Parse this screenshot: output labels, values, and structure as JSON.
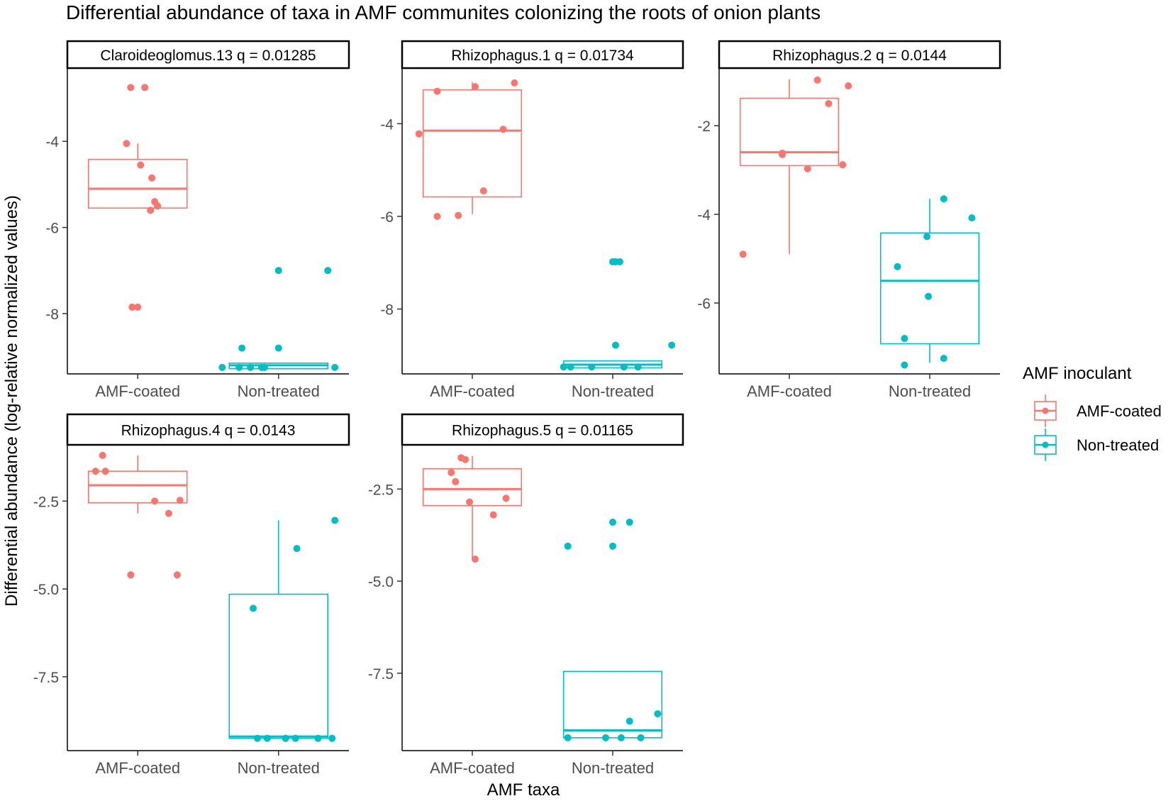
{
  "chart_data": {
    "type": "boxplot",
    "title": "Differential abundance of taxa in AMF communites colonizing the roots of onion plants",
    "xlabel": "AMF taxa",
    "ylabel": "Differential abundance (log-relative normalized values)",
    "categories": [
      "AMF-coated",
      "Non-treated"
    ],
    "legend": {
      "title": "AMF inoculant",
      "position": "right",
      "entries": [
        {
          "label": "AMF-coated",
          "color": "#F8766D"
        },
        {
          "label": "Non-treated",
          "color": "#00BFC4"
        }
      ]
    },
    "panels": [
      {
        "strip": "Claroideoglomus.13 q = 0.01285",
        "ylim": [
          -9.4,
          -2.3
        ],
        "yticks": [
          -4,
          -6,
          -8
        ],
        "ytick_labels": [
          "-4",
          "-6",
          "-8"
        ],
        "series": [
          {
            "name": "AMF-coated",
            "box": {
              "q1": -5.55,
              "median": -5.1,
              "q3": -4.42,
              "lower": -5.55,
              "upper": -4.05
            },
            "points": [
              [
                -0.05,
                -2.75
              ],
              [
                0.05,
                -2.75
              ],
              [
                -0.08,
                -4.05
              ],
              [
                0.02,
                -4.55
              ],
              [
                0.1,
                -4.85
              ],
              [
                0.12,
                -5.4
              ],
              [
                0.09,
                -5.6
              ],
              [
                0.14,
                -5.5
              ],
              [
                -0.04,
                -7.85
              ],
              [
                0.0,
                -7.85
              ]
            ]
          },
          {
            "name": "Non-treated",
            "box": {
              "q1": -9.28,
              "median": -9.2,
              "q3": -9.15,
              "lower": -9.28,
              "upper": -9.15
            },
            "points": [
              [
                -0.4,
                -9.25
              ],
              [
                -0.28,
                -9.25
              ],
              [
                -0.2,
                -9.25
              ],
              [
                -0.12,
                -9.25
              ],
              [
                -0.1,
                -9.25
              ],
              [
                0.4,
                -9.25
              ],
              [
                -0.26,
                -8.8
              ],
              [
                0.0,
                -8.8
              ],
              [
                0.0,
                -7.0
              ],
              [
                0.35,
                -7.0
              ]
            ]
          }
        ]
      },
      {
        "strip": "Rhizophagus.1 q = 0.01734",
        "ylim": [
          -9.4,
          -2.8
        ],
        "yticks": [
          -4,
          -6,
          -8
        ],
        "ytick_labels": [
          "-4",
          "-6",
          "-8"
        ],
        "series": [
          {
            "name": "AMF-coated",
            "box": {
              "q1": -5.58,
              "median": -4.15,
              "q3": -3.27,
              "lower": -5.95,
              "upper": -3.1
            },
            "points": [
              [
                -0.38,
                -4.22
              ],
              [
                -0.25,
                -3.3
              ],
              [
                -0.25,
                -6.0
              ],
              [
                -0.1,
                -5.98
              ],
              [
                0.02,
                -3.2
              ],
              [
                0.08,
                -5.45
              ],
              [
                0.22,
                -4.12
              ],
              [
                0.3,
                -3.12
              ]
            ]
          },
          {
            "name": "Non-treated",
            "box": {
              "q1": -9.27,
              "median": -9.2,
              "q3": -9.12,
              "lower": -9.27,
              "upper": -9.12
            },
            "points": [
              [
                -0.35,
                -9.25
              ],
              [
                -0.3,
                -9.25
              ],
              [
                -0.15,
                -9.25
              ],
              [
                0.08,
                -9.25
              ],
              [
                0.18,
                -9.25
              ],
              [
                0.0,
                -6.98
              ],
              [
                0.05,
                -6.98
              ],
              [
                0.02,
                -6.98
              ],
              [
                0.02,
                -8.78
              ],
              [
                0.42,
                -8.78
              ]
            ]
          }
        ]
      },
      {
        "strip": "Rhizophagus.2 q = 0.0144",
        "ylim": [
          -7.6,
          -0.7
        ],
        "yticks": [
          -2,
          -4,
          -6
        ],
        "ytick_labels": [
          "-2",
          "-4",
          "-6"
        ],
        "series": [
          {
            "name": "AMF-coated",
            "box": {
              "q1": -2.9,
              "median": -2.6,
              "q3": -1.38,
              "lower": -4.9,
              "upper": -0.95
            },
            "points": [
              [
                -0.33,
                -4.9
              ],
              [
                -0.05,
                -2.62
              ],
              [
                -0.05,
                -2.65
              ],
              [
                0.13,
                -2.97
              ],
              [
                0.2,
                -0.97
              ],
              [
                0.28,
                -1.5
              ],
              [
                0.38,
                -2.88
              ],
              [
                0.42,
                -1.1
              ]
            ]
          },
          {
            "name": "Non-treated",
            "box": {
              "q1": -6.92,
              "median": -5.5,
              "q3": -4.42,
              "lower": -7.35,
              "upper": -3.65
            },
            "points": [
              [
                -0.23,
                -5.18
              ],
              [
                -0.18,
                -6.8
              ],
              [
                -0.18,
                -7.4
              ],
              [
                -0.02,
                -4.5
              ],
              [
                -0.01,
                -5.85
              ],
              [
                0.1,
                -3.65
              ],
              [
                0.1,
                -7.25
              ],
              [
                0.3,
                -4.08
              ]
            ]
          }
        ]
      },
      {
        "strip": "Rhizophagus.4 q = 0.0143",
        "ylim": [
          -9.6,
          -0.9
        ],
        "yticks": [
          -2.5,
          -5.0,
          -7.5
        ],
        "ytick_labels": [
          "-2.5",
          "-5.0",
          "-7.5"
        ],
        "series": [
          {
            "name": "AMF-coated",
            "box": {
              "q1": -2.55,
              "median": -2.05,
              "q3": -1.65,
              "lower": -2.85,
              "upper": -1.2
            },
            "points": [
              [
                -0.25,
                -1.2
              ],
              [
                -0.3,
                -1.65
              ],
              [
                -0.23,
                -1.65
              ],
              [
                0.12,
                -2.5
              ],
              [
                0.22,
                -2.85
              ],
              [
                0.3,
                -2.48
              ],
              [
                0.28,
                -4.6
              ],
              [
                -0.05,
                -4.6
              ]
            ]
          },
          {
            "name": "Non-treated",
            "box": {
              "q1": -9.25,
              "median": -9.2,
              "q3": -5.15,
              "lower": -9.25,
              "upper": -3.05
            },
            "points": [
              [
                -0.18,
                -5.55
              ],
              [
                -0.15,
                -9.25
              ],
              [
                -0.08,
                -9.25
              ],
              [
                0.05,
                -9.25
              ],
              [
                0.12,
                -9.25
              ],
              [
                0.28,
                -9.25
              ],
              [
                0.38,
                -9.25
              ],
              [
                0.13,
                -3.85
              ],
              [
                0.4,
                -3.05
              ]
            ]
          }
        ]
      },
      {
        "strip": "Rhizophagus.5 q = 0.01165",
        "ylim": [
          -9.6,
          -1.3
        ],
        "yticks": [
          -2.5,
          -5.0,
          -7.5
        ],
        "ytick_labels": [
          "-2.5",
          "-5.0",
          "-7.5"
        ],
        "series": [
          {
            "name": "AMF-coated",
            "box": {
              "q1": -2.95,
              "median": -2.5,
              "q3": -1.95,
              "lower": -4.4,
              "upper": -1.6
            },
            "points": [
              [
                -0.08,
                -1.65
              ],
              [
                -0.05,
                -1.7
              ],
              [
                -0.15,
                -2.05
              ],
              [
                -0.12,
                -2.3
              ],
              [
                -0.02,
                -2.85
              ],
              [
                0.15,
                -3.2
              ],
              [
                0.24,
                -2.75
              ],
              [
                0.02,
                -4.4
              ]
            ]
          },
          {
            "name": "Non-treated",
            "box": {
              "q1": -9.25,
              "median": -9.05,
              "q3": -7.45,
              "lower": -9.25,
              "upper": -7.45
            },
            "points": [
              [
                -0.32,
                -4.05
              ],
              [
                0.0,
                -4.05
              ],
              [
                0.0,
                -3.4
              ],
              [
                0.12,
                -3.4
              ],
              [
                -0.32,
                -9.25
              ],
              [
                -0.05,
                -9.25
              ],
              [
                0.06,
                -9.25
              ],
              [
                0.2,
                -9.25
              ],
              [
                0.12,
                -8.8
              ],
              [
                0.32,
                -8.6
              ]
            ]
          }
        ]
      }
    ]
  }
}
